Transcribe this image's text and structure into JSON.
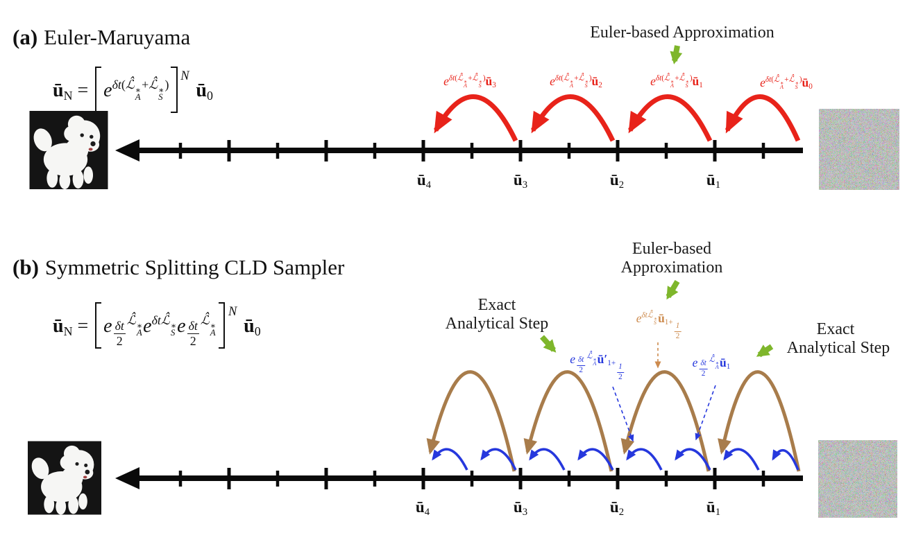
{
  "colors": {
    "red": "#e8231a",
    "green": "#7eb62b",
    "brown": "#a87c4b",
    "blue": "#2638dd",
    "orange": "#cd8b4e",
    "timeline": "#0a0a0a"
  },
  "images": {
    "panel_a_left": "dog-photo",
    "panel_a_right": "noise-image",
    "panel_b_left": "dog-photo",
    "panel_b_right": "noise-image"
  },
  "panel_a": {
    "tag": "(a)",
    "title": "Euler-Maruyama",
    "annotation": "Euler-based Approximation",
    "formula": [
      {
        "t": "b",
        "v": "ū"
      },
      {
        "t": "sub",
        "v": "N"
      },
      {
        "t": "r",
        "v": " = "
      },
      {
        "t": "lb"
      },
      {
        "t": "i",
        "v": "e"
      },
      {
        "t": "sup",
        "seq": [
          {
            "t": "i",
            "v": "δt"
          },
          {
            "t": "r",
            "v": "("
          },
          {
            "t": "i",
            "v": "ℒ̂"
          },
          {
            "t": "ss",
            "up": "∗",
            "dn": "A"
          },
          {
            "t": "r",
            "v": "+"
          },
          {
            "t": "i",
            "v": "ℒ̂"
          },
          {
            "t": "ss",
            "up": "∗",
            "dn": "S"
          },
          {
            "t": "r",
            "v": ")"
          }
        ]
      },
      {
        "t": "rb"
      },
      {
        "t": "supN",
        "v": "N"
      },
      {
        "t": "sp",
        "v": ""
      },
      {
        "t": "b",
        "v": "ū"
      },
      {
        "t": "sub",
        "v": "0"
      }
    ],
    "jump_labels": [
      [
        {
          "t": "i",
          "v": "e"
        },
        {
          "t": "sup",
          "seq": [
            {
              "t": "i",
              "v": "δt"
            },
            {
              "t": "r",
              "v": "("
            },
            {
              "t": "i",
              "v": "ℒ̂"
            },
            {
              "t": "ss",
              "up": "∗",
              "dn": "A"
            },
            {
              "t": "r",
              "v": "+"
            },
            {
              "t": "i",
              "v": "ℒ̂"
            },
            {
              "t": "ss",
              "up": "∗",
              "dn": "S"
            },
            {
              "t": "r",
              "v": ")"
            }
          ]
        },
        {
          "t": "b",
          "v": "ū"
        },
        {
          "t": "sub",
          "v": "3"
        }
      ],
      [
        {
          "t": "i",
          "v": "e"
        },
        {
          "t": "sup",
          "seq": [
            {
              "t": "i",
              "v": "δt"
            },
            {
              "t": "r",
              "v": "("
            },
            {
              "t": "i",
              "v": "ℒ̂"
            },
            {
              "t": "ss",
              "up": "∗",
              "dn": "A"
            },
            {
              "t": "r",
              "v": "+"
            },
            {
              "t": "i",
              "v": "ℒ̂"
            },
            {
              "t": "ss",
              "up": "∗",
              "dn": "S"
            },
            {
              "t": "r",
              "v": ")"
            }
          ]
        },
        {
          "t": "b",
          "v": "ū"
        },
        {
          "t": "sub",
          "v": "2"
        }
      ],
      [
        {
          "t": "i",
          "v": "e"
        },
        {
          "t": "sup",
          "seq": [
            {
              "t": "i",
              "v": "δt"
            },
            {
              "t": "r",
              "v": "("
            },
            {
              "t": "i",
              "v": "ℒ̂"
            },
            {
              "t": "ss",
              "up": "∗",
              "dn": "A"
            },
            {
              "t": "r",
              "v": "+"
            },
            {
              "t": "i",
              "v": "ℒ̂"
            },
            {
              "t": "ss",
              "up": "∗",
              "dn": "S"
            },
            {
              "t": "r",
              "v": ")"
            }
          ]
        },
        {
          "t": "b",
          "v": "ū"
        },
        {
          "t": "sub",
          "v": "1"
        }
      ],
      [
        {
          "t": "i",
          "v": "e"
        },
        {
          "t": "sup",
          "seq": [
            {
              "t": "i",
              "v": "δt"
            },
            {
              "t": "r",
              "v": "("
            },
            {
              "t": "i",
              "v": "ℒ̂"
            },
            {
              "t": "ss",
              "up": "∗",
              "dn": "A"
            },
            {
              "t": "r",
              "v": "+"
            },
            {
              "t": "i",
              "v": "ℒ̂"
            },
            {
              "t": "ss",
              "up": "∗",
              "dn": "S"
            },
            {
              "t": "r",
              "v": ")"
            }
          ]
        },
        {
          "t": "b",
          "v": "ū"
        },
        {
          "t": "sub",
          "v": "0"
        }
      ]
    ],
    "tick_labels": [
      [
        {
          "t": "b",
          "v": "ū"
        },
        {
          "t": "sub",
          "v": "4"
        }
      ],
      [
        {
          "t": "b",
          "v": "ū"
        },
        {
          "t": "sub",
          "v": "3"
        }
      ],
      [
        {
          "t": "b",
          "v": "ū"
        },
        {
          "t": "sub",
          "v": "2"
        }
      ],
      [
        {
          "t": "b",
          "v": "ū"
        },
        {
          "t": "sub",
          "v": "1"
        }
      ]
    ]
  },
  "panel_b": {
    "tag": "(b)",
    "title": "Symmetric Splitting CLD Sampler",
    "ann_euler": [
      "Euler-based",
      "Approximation"
    ],
    "ann_exact_left": [
      "Exact",
      "Analytical Step"
    ],
    "ann_exact_right": [
      "Exact",
      "Analytical Step"
    ],
    "formula": [
      {
        "t": "b",
        "v": "ū"
      },
      {
        "t": "sub",
        "v": "N"
      },
      {
        "t": "r",
        "v": " = "
      },
      {
        "t": "lb"
      },
      {
        "t": "i",
        "v": "e"
      },
      {
        "t": "sup",
        "seq": [
          {
            "t": "frac",
            "up": "δt",
            "dn": "2"
          },
          {
            "t": "i",
            "v": "ℒ̂"
          },
          {
            "t": "ss",
            "up": "∗",
            "dn": "A"
          }
        ]
      },
      {
        "t": "i",
        "v": "e"
      },
      {
        "t": "sup",
        "seq": [
          {
            "t": "i",
            "v": "δt"
          },
          {
            "t": "i",
            "v": "ℒ̂"
          },
          {
            "t": "ss",
            "up": "∗",
            "dn": "S"
          }
        ]
      },
      {
        "t": "i",
        "v": "e"
      },
      {
        "t": "sup",
        "seq": [
          {
            "t": "frac",
            "up": "δt",
            "dn": "2"
          },
          {
            "t": "i",
            "v": "ℒ̂"
          },
          {
            "t": "ss",
            "up": "∗",
            "dn": "A"
          }
        ]
      },
      {
        "t": "rb"
      },
      {
        "t": "supN",
        "v": "N"
      },
      {
        "t": "sp",
        "v": ""
      },
      {
        "t": "b",
        "v": "ū"
      },
      {
        "t": "sub",
        "v": "0"
      }
    ],
    "label_orange": [
      {
        "t": "i",
        "v": "e"
      },
      {
        "t": "sup",
        "seq": [
          {
            "t": "i",
            "v": "δt"
          },
          {
            "t": "i",
            "v": "ℒ̂"
          },
          {
            "t": "ss",
            "up": "∗",
            "dn": "S"
          }
        ]
      },
      {
        "t": "b",
        "v": "ū"
      },
      {
        "t": "sub",
        "seq": [
          {
            "t": "r",
            "v": "1+"
          },
          {
            "t": "frac",
            "up": "1",
            "dn": "2"
          }
        ]
      }
    ],
    "label_blue_half": [
      {
        "t": "i",
        "v": "e"
      },
      {
        "t": "sup",
        "seq": [
          {
            "t": "frac",
            "up": "δt",
            "dn": "2"
          },
          {
            "t": "i",
            "v": "ℒ̂"
          },
          {
            "t": "ss",
            "up": "∗",
            "dn": "A"
          }
        ]
      },
      {
        "t": "b",
        "v": "ū′"
      },
      {
        "t": "sub",
        "seq": [
          {
            "t": "r",
            "v": "1+"
          },
          {
            "t": "frac",
            "up": "1",
            "dn": "2"
          }
        ]
      }
    ],
    "label_blue_u1": [
      {
        "t": "i",
        "v": "e"
      },
      {
        "t": "sup",
        "seq": [
          {
            "t": "frac",
            "up": "δt",
            "dn": "2"
          },
          {
            "t": "i",
            "v": "ℒ̂"
          },
          {
            "t": "ss",
            "up": "∗",
            "dn": "A"
          }
        ]
      },
      {
        "t": "b",
        "v": "ū"
      },
      {
        "t": "sub",
        "v": "1"
      }
    ],
    "tick_labels": [
      [
        {
          "t": "b",
          "v": "ū"
        },
        {
          "t": "sub",
          "v": "4"
        }
      ],
      [
        {
          "t": "b",
          "v": "ū"
        },
        {
          "t": "sub",
          "v": "3"
        }
      ],
      [
        {
          "t": "b",
          "v": "ū"
        },
        {
          "t": "sub",
          "v": "2"
        }
      ],
      [
        {
          "t": "b",
          "v": "ū"
        },
        {
          "t": "sub",
          "v": "1"
        }
      ]
    ]
  }
}
